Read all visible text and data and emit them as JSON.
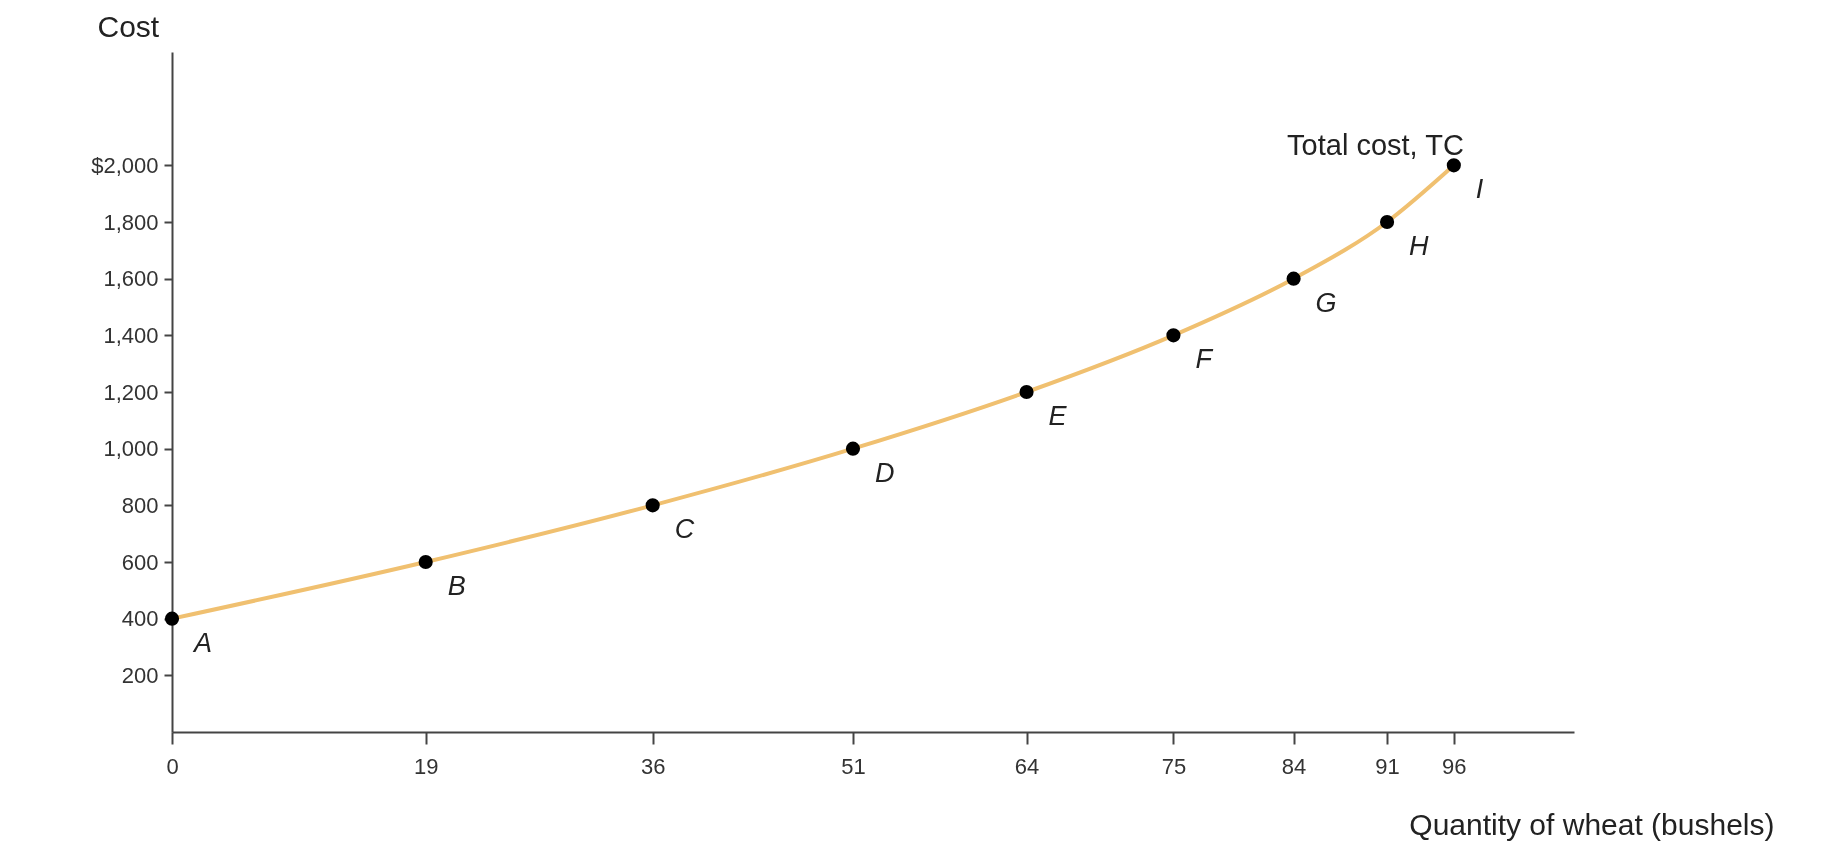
{
  "chart_data": {
    "type": "line",
    "ylabel": "Cost",
    "xlabel": "Quantity of wheat (bushels)",
    "x": [
      0,
      19,
      36,
      51,
      64,
      75,
      84,
      91,
      96
    ],
    "series": [
      {
        "name": "Total cost, TC",
        "color": "#f0c070",
        "values": [
          400,
          600,
          800,
          1000,
          1200,
          1400,
          1600,
          1800,
          2000
        ]
      }
    ],
    "xlim": [
      0,
      105
    ],
    "xticks": [
      0,
      19,
      36,
      51,
      64,
      75,
      84,
      91,
      96
    ],
    "ylim": [
      0,
      2400
    ],
    "yticks": [
      200,
      400,
      600,
      800,
      {
        "value": 1000,
        "label": "1,000"
      },
      {
        "value": 1200,
        "label": "1,200"
      },
      {
        "value": 1400,
        "label": "1,400"
      },
      {
        "value": 1600,
        "label": "1,600"
      },
      {
        "value": 1800,
        "label": "1,800"
      },
      {
        "value": 2000,
        "label": "$2,000"
      }
    ],
    "annotations": [
      {
        "text": "A",
        "x": 0,
        "y": 400
      },
      {
        "text": "B",
        "x": 19,
        "y": 600
      },
      {
        "text": "C",
        "x": 36,
        "y": 800
      },
      {
        "text": "D",
        "x": 51,
        "y": 1000
      },
      {
        "text": "E",
        "x": 64,
        "y": 1200
      },
      {
        "text": "F",
        "x": 75,
        "y": 1400
      },
      {
        "text": "G",
        "x": 84,
        "y": 1600
      },
      {
        "text": "H",
        "x": 91,
        "y": 1800
      },
      {
        "text": "I",
        "x": 96,
        "y": 2000
      }
    ],
    "marker": "circle",
    "grid": false
  }
}
